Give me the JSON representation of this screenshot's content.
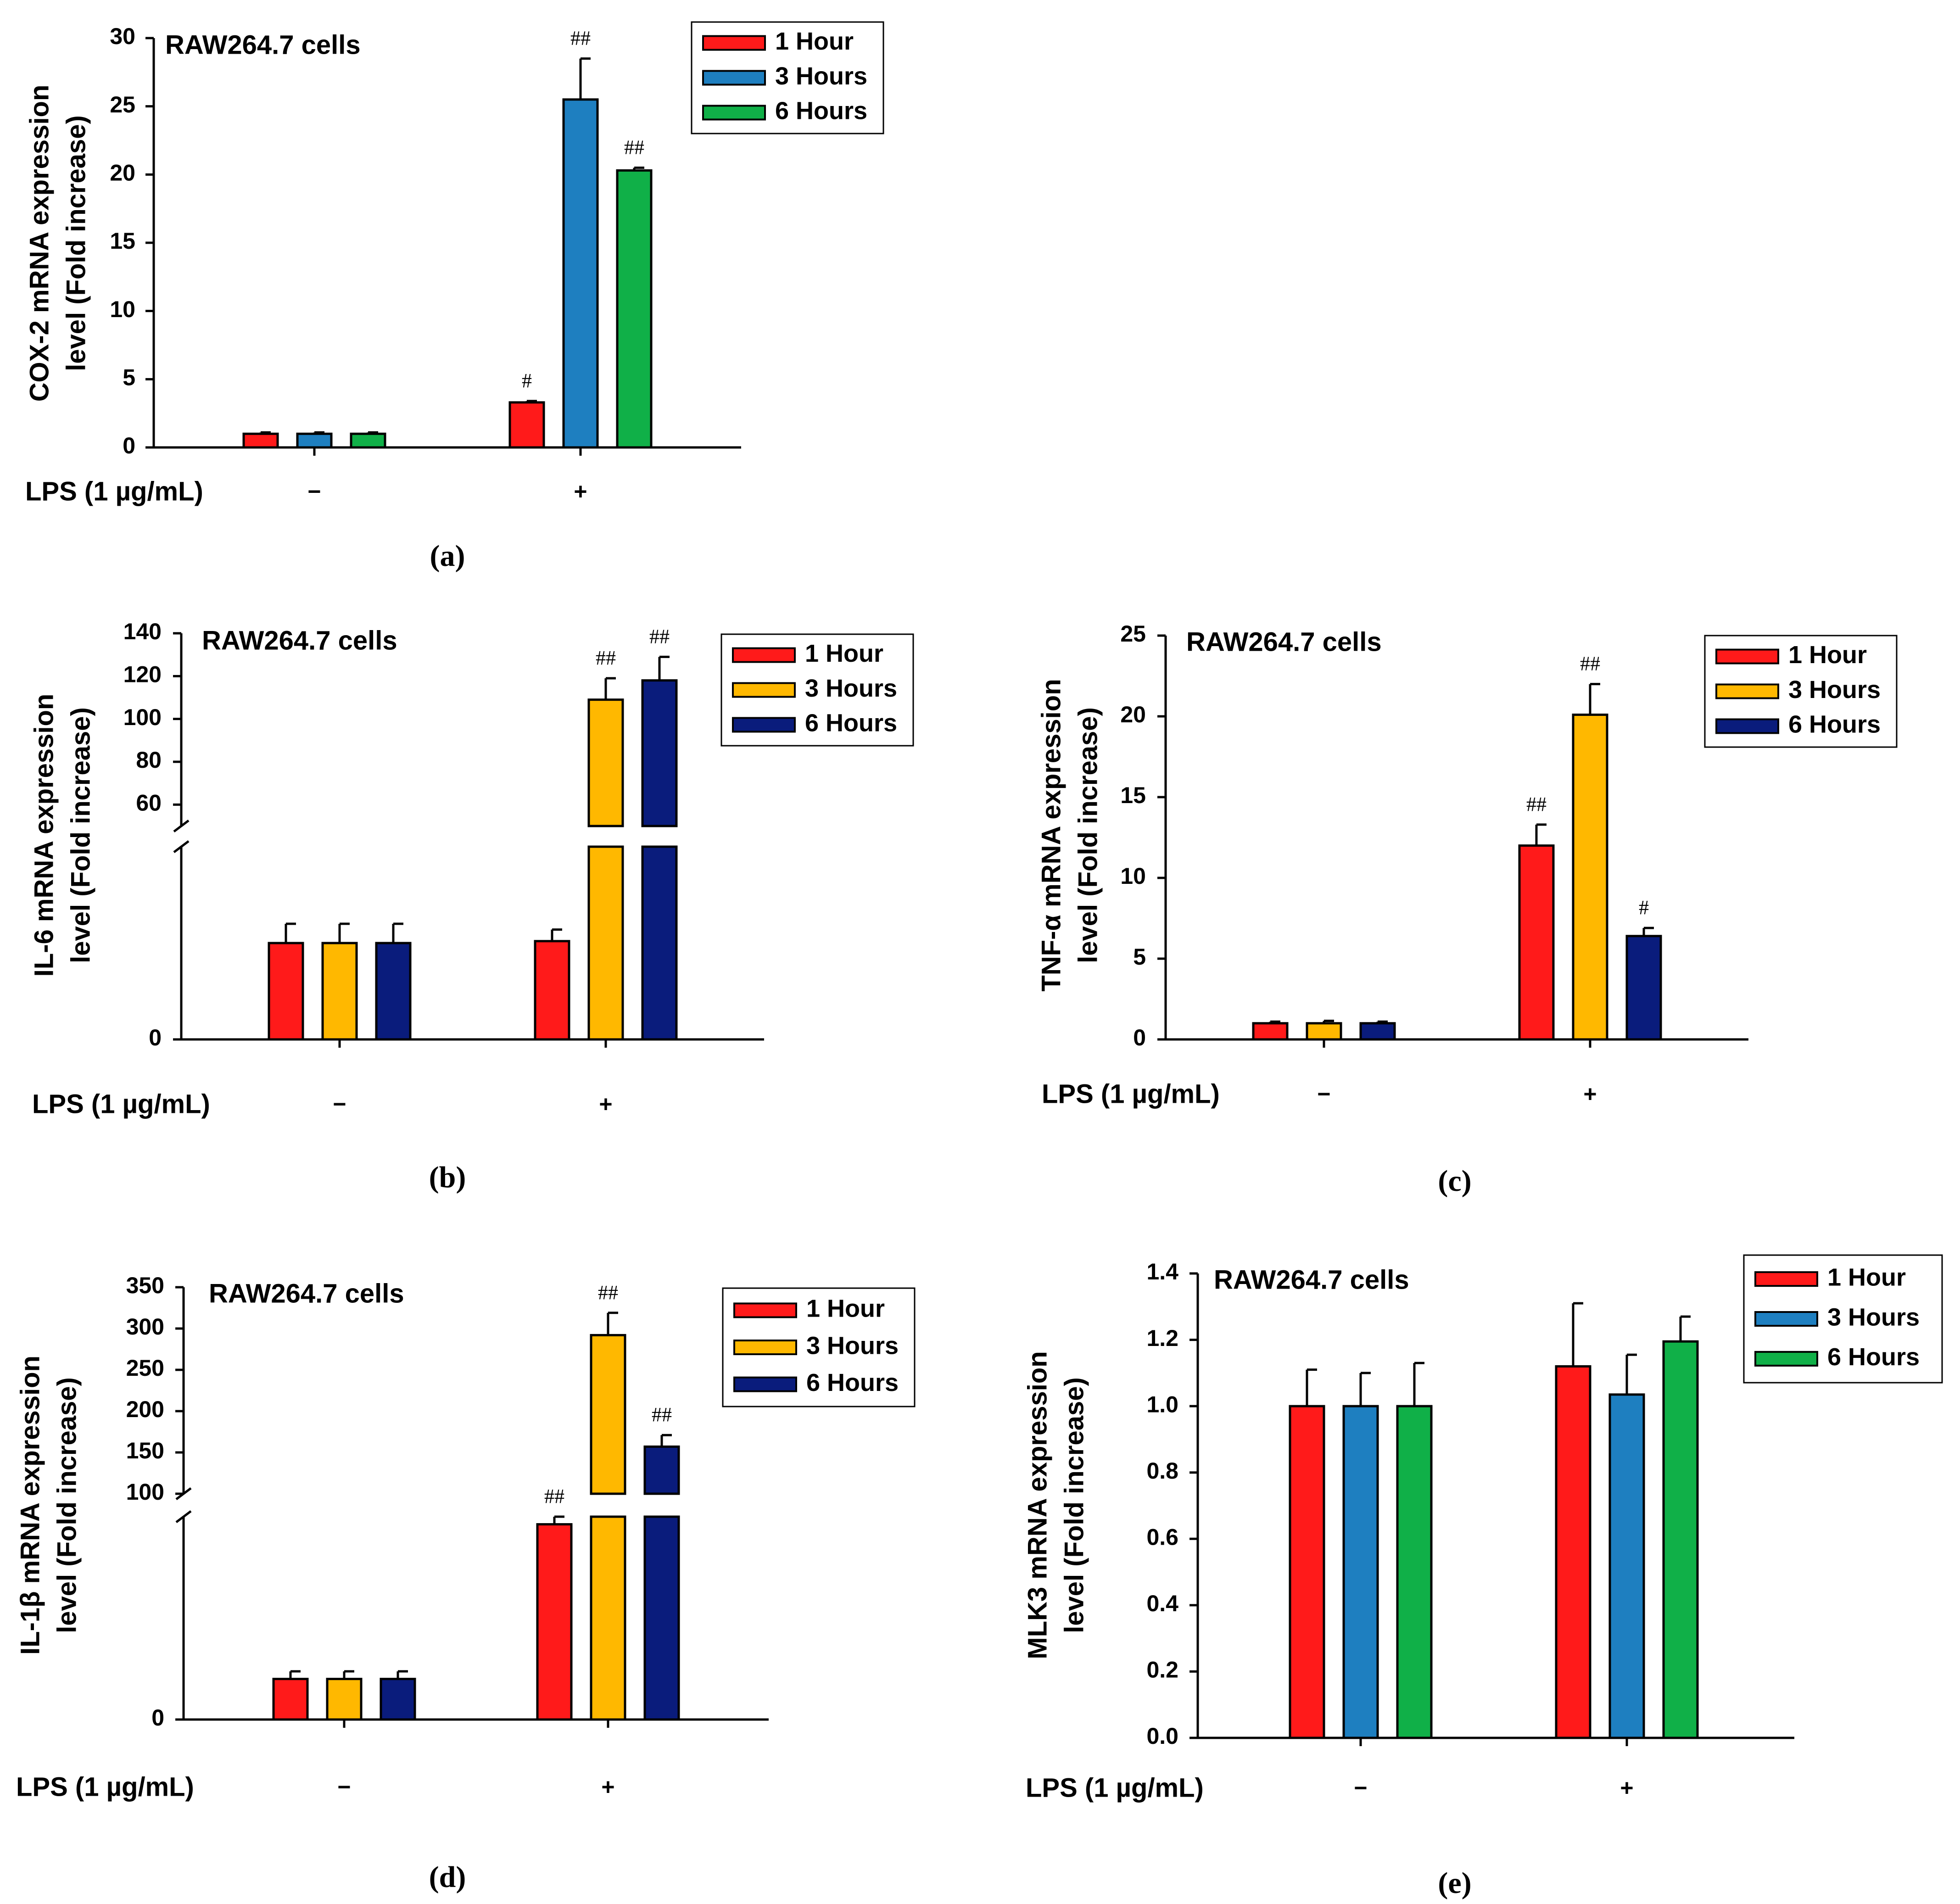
{
  "chart_data": [
    {
      "panel": "a",
      "type": "bar",
      "title": "RAW264.7 cells",
      "ylabel_line1": "COX-2 mRNA expression",
      "ylabel_line2": "level (Fold increase)",
      "xlabel": "LPS (1 µg/mL)",
      "categories": [
        "−",
        "+"
      ],
      "ylim": [
        0,
        30
      ],
      "yticks": [
        0,
        5,
        10,
        15,
        20,
        25,
        30
      ],
      "axis_break": null,
      "series": [
        {
          "name": "1 Hour",
          "color": "#ff1a1a",
          "values": [
            1.0,
            3.3
          ],
          "errors": [
            0.1,
            0.1
          ],
          "marks": [
            "",
            "#"
          ]
        },
        {
          "name": "3 Hours",
          "color": "#1e7fc0",
          "values": [
            1.0,
            25.5
          ],
          "errors": [
            0.1,
            3.0
          ],
          "marks": [
            "",
            "##"
          ]
        },
        {
          "name": "6 Hours",
          "color": "#10b048",
          "values": [
            1.0,
            20.3
          ],
          "errors": [
            0.1,
            0.2
          ],
          "marks": [
            "",
            "##"
          ]
        }
      ],
      "caption": "(a)"
    },
    {
      "panel": "b",
      "type": "bar",
      "title": "RAW264.7 cells",
      "ylabel_line1": "IL-6 mRNA expression",
      "ylabel_line2": "level (Fold increase)",
      "xlabel": "LPS (1 µg/mL)",
      "categories": [
        "−",
        "+"
      ],
      "ylim": [
        0,
        140
      ],
      "yticks": [
        0,
        60,
        80,
        100,
        120,
        140
      ],
      "axis_break": {
        "lower_max": 50,
        "upper_min": 50
      },
      "series": [
        {
          "name": "1 Hour",
          "color": "#ff1a1a",
          "values": [
            25,
            25.5
          ],
          "errors": [
            5,
            3
          ],
          "marks": [
            "",
            ""
          ]
        },
        {
          "name": "3 Hours",
          "color": "#ffb800",
          "values": [
            25,
            109
          ],
          "errors": [
            5,
            10
          ],
          "marks": [
            "",
            "##"
          ]
        },
        {
          "name": "6 Hours",
          "color": "#0a1c7c",
          "values": [
            25,
            118
          ],
          "errors": [
            5,
            11
          ],
          "marks": [
            "",
            "##"
          ]
        }
      ],
      "caption": "(b)"
    },
    {
      "panel": "c",
      "type": "bar",
      "title": "RAW264.7 cells",
      "ylabel_line1": "TNF-α mRNA expression",
      "ylabel_line2": "level (Fold increase)",
      "xlabel": "LPS (1 µg/mL)",
      "categories": [
        "−",
        "+"
      ],
      "ylim": [
        0,
        25
      ],
      "yticks": [
        0,
        5,
        10,
        15,
        20,
        25
      ],
      "axis_break": null,
      "series": [
        {
          "name": "1 Hour",
          "color": "#ff1a1a",
          "values": [
            1.0,
            12.0
          ],
          "errors": [
            0.1,
            1.3
          ],
          "marks": [
            "",
            "##"
          ]
        },
        {
          "name": "3 Hours",
          "color": "#ffb800",
          "values": [
            1.0,
            20.1
          ],
          "errors": [
            0.15,
            1.9
          ],
          "marks": [
            "",
            "##"
          ]
        },
        {
          "name": "6 Hours",
          "color": "#0a1c7c",
          "values": [
            1.0,
            6.4
          ],
          "errors": [
            0.1,
            0.5
          ],
          "marks": [
            "",
            "#"
          ]
        }
      ],
      "caption": "(c)"
    },
    {
      "panel": "d",
      "type": "bar",
      "title": "RAW264.7 cells",
      "ylabel_line1": "IL-1β mRNA expression",
      "ylabel_line2": "level (Fold increase)",
      "xlabel": "LPS (1 µg/mL)",
      "categories": [
        "−",
        "+"
      ],
      "ylim": [
        0,
        350
      ],
      "yticks": [
        0,
        100,
        150,
        200,
        250,
        300,
        350
      ],
      "axis_break": {
        "lower_max": 80,
        "upper_min": 100
      },
      "series": [
        {
          "name": "1 Hour",
          "color": "#ff1a1a",
          "values": [
            16,
            77
          ],
          "errors": [
            3,
            3
          ],
          "marks": [
            "",
            "##"
          ]
        },
        {
          "name": "3 Hours",
          "color": "#ffb800",
          "values": [
            16,
            292
          ],
          "errors": [
            3,
            27
          ],
          "marks": [
            "",
            "##"
          ]
        },
        {
          "name": "6 Hours",
          "color": "#0a1c7c",
          "values": [
            16,
            157
          ],
          "errors": [
            3,
            14
          ],
          "marks": [
            "",
            "##"
          ]
        }
      ],
      "caption": "(d)"
    },
    {
      "panel": "e",
      "type": "bar",
      "title": "RAW264.7 cells",
      "ylabel_line1": "MLK3 mRNA expression",
      "ylabel_line2": "level (Fold increase)",
      "xlabel": "LPS (1 µg/mL)",
      "categories": [
        "−",
        "+"
      ],
      "ylim": [
        0,
        1.4
      ],
      "yticks": [
        0.0,
        0.2,
        0.4,
        0.6,
        0.8,
        1.0,
        1.2,
        1.4
      ],
      "axis_break": null,
      "series": [
        {
          "name": "1 Hour",
          "color": "#ff1a1a",
          "values": [
            1.0,
            1.12
          ],
          "errors": [
            0.11,
            0.19
          ],
          "marks": [
            "",
            ""
          ]
        },
        {
          "name": "3 Hours",
          "color": "#1e7fc0",
          "values": [
            1.0,
            1.035
          ],
          "errors": [
            0.1,
            0.12
          ],
          "marks": [
            "",
            ""
          ]
        },
        {
          "name": "6 Hours",
          "color": "#10b048",
          "values": [
            1.0,
            1.195
          ],
          "errors": [
            0.13,
            0.075
          ],
          "marks": [
            "",
            ""
          ]
        }
      ],
      "caption": "(e)"
    }
  ]
}
